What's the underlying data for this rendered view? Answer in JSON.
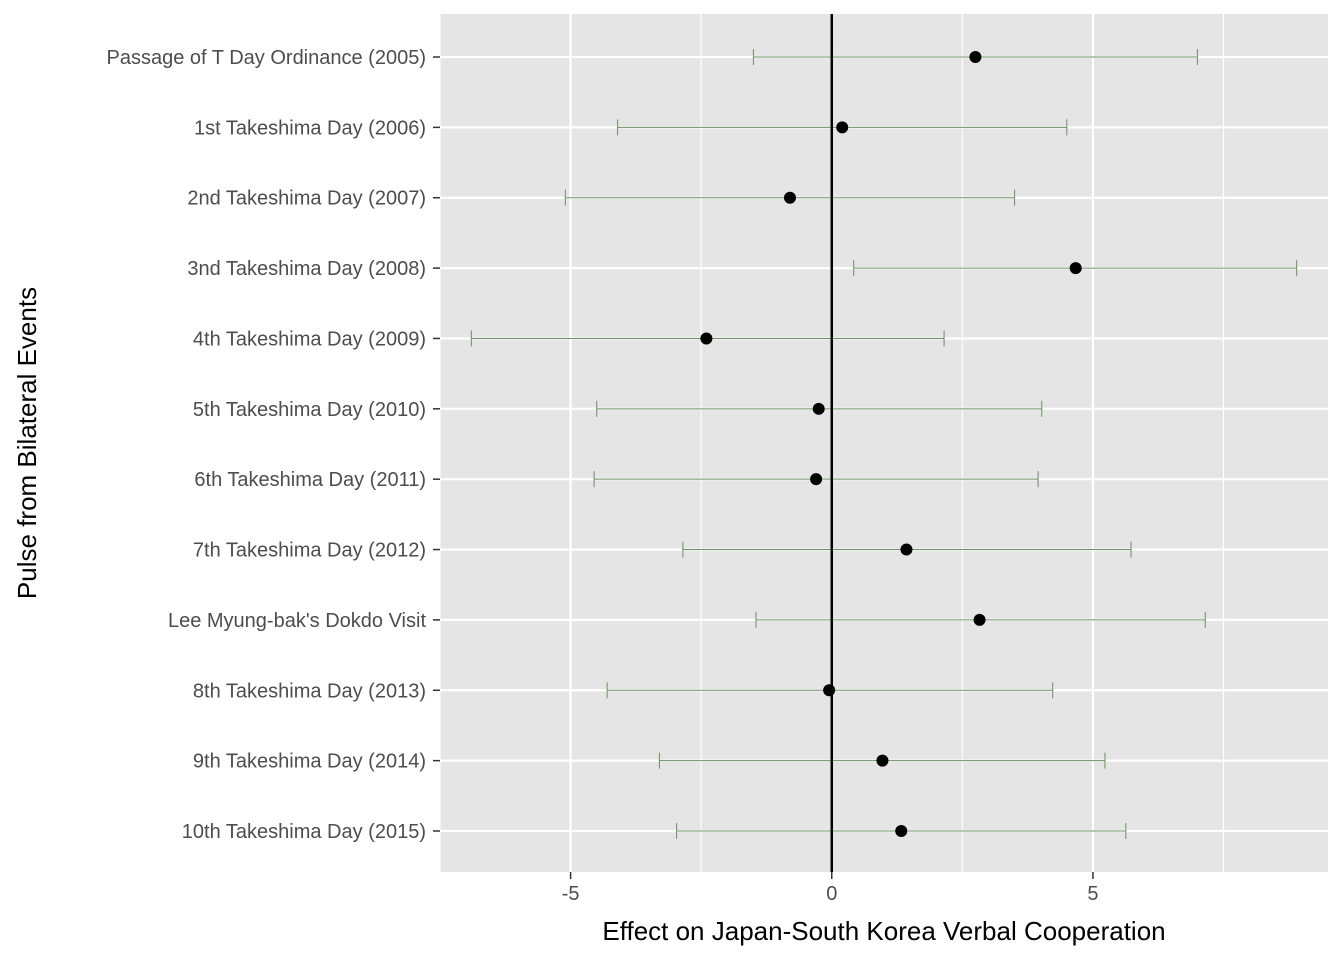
{
  "chart_data": {
    "type": "scatter",
    "title": "",
    "xlabel": "Effect on Japan-South Korea Verbal Cooperation",
    "ylabel": "Pulse from Bilateral Events",
    "xlim": [
      -7.5,
      9.5
    ],
    "x_ticks": [
      -5,
      0,
      5
    ],
    "x_tick_labels": [
      "-5",
      "0",
      "5"
    ],
    "reference_line_x": 0,
    "grid": true,
    "panel_background": "#e5e5e5",
    "grid_color": "#ffffff",
    "point_color": "#000000",
    "errorbar_color": "#6b8f62",
    "categories": [
      "Passage of T Day Ordinance (2005)",
      "1st Takeshima Day (2006)",
      "2nd Takeshima Day (2007)",
      "3nd Takeshima Day (2008)",
      "4th Takeshima Day (2009)",
      "5th Takeshima Day (2010)",
      "6th Takeshima Day (2011)",
      "7th Takeshima Day (2012)",
      "Lee Myung-bak's Dokdo Visit",
      "8th Takeshima Day (2013)",
      "9th Takeshima Day (2014)",
      "10th Takeshima Day (2015)"
    ],
    "estimates": [
      2.75,
      0.2,
      -0.8,
      4.67,
      -2.4,
      -0.25,
      -0.3,
      1.43,
      2.83,
      -0.05,
      0.97,
      1.33
    ],
    "lower": [
      -1.5,
      -4.1,
      -5.1,
      0.42,
      -6.9,
      -4.5,
      -4.55,
      -2.85,
      -1.45,
      -4.3,
      -3.3,
      -2.97
    ],
    "upper": [
      7.0,
      4.5,
      3.5,
      8.9,
      2.15,
      4.02,
      3.95,
      5.73,
      7.15,
      4.23,
      5.23,
      5.63
    ]
  }
}
